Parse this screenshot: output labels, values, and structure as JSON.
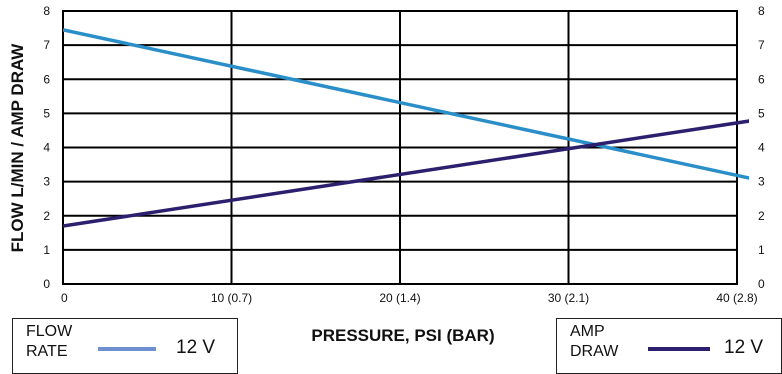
{
  "chart_data": {
    "type": "line",
    "xlabel": "PRESSURE, PSI (BAR)",
    "ylabel": "FLOW L/MIN / AMP DRAW",
    "xlim": [
      0,
      40
    ],
    "ylim": [
      0,
      8
    ],
    "x_ticks": [
      {
        "value": 0,
        "label": "0"
      },
      {
        "value": 10,
        "label": "10 (0.7)"
      },
      {
        "value": 20,
        "label": "20 (1.4)"
      },
      {
        "value": 30,
        "label": "30 (2.1)"
      },
      {
        "value": 40,
        "label": "40 (2.8)"
      }
    ],
    "y_ticks": [
      "0",
      "1",
      "2",
      "3",
      "4",
      "5",
      "6",
      "7",
      "8"
    ],
    "grid": true,
    "series": [
      {
        "name": "FLOW RATE 12 V",
        "color": "#2a8fc9",
        "x": [
          0,
          45
        ],
        "y": [
          7.45,
          2.65
        ]
      },
      {
        "name": "AMP DRAW 12 V",
        "color": "#2b1f6e",
        "x": [
          0,
          45
        ],
        "y": [
          1.7,
          5.1
        ]
      }
    ]
  },
  "legend": {
    "flow": {
      "label_line1": "FLOW",
      "label_line2": "RATE",
      "voltage": "12 V",
      "color": "#6e8fd0"
    },
    "amp": {
      "label_line1": "AMP",
      "label_line2": "DRAW",
      "voltage": "12 V",
      "color": "#2b1f6e"
    }
  }
}
